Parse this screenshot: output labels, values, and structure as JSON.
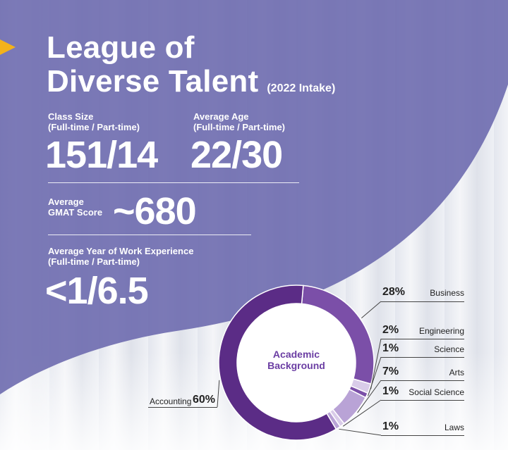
{
  "header": {
    "title_line1": "League of",
    "title_line2": "Diverse Talent",
    "intake": "(2022 Intake)"
  },
  "stats": {
    "class_size": {
      "label1": "Class Size",
      "label2": "(Full-time / Part-time)",
      "value": "151/14"
    },
    "average_age": {
      "label1": "Average Age",
      "label2": "(Full-time / Part-time)",
      "value": "22/30"
    },
    "gmat": {
      "label1": "Average",
      "label2": "GMAT Score",
      "value": "~680"
    },
    "work_experience": {
      "label1": "Average Year of Work Experience",
      "label2": "(Full-time / Part-time)",
      "value": "<1/6.5"
    }
  },
  "colors": {
    "purple_overlay": "#6a68ad",
    "accent_arrow": "#f3b21b",
    "donut_dark": "#5b2c86",
    "donut_mid": "#7b4fa8",
    "donut_light": "#b9a3d6",
    "donut_pale": "#d9cce9"
  },
  "chart_data": {
    "type": "pie",
    "title": "Academic Background",
    "slices": [
      {
        "label": "Business",
        "value": 28,
        "display": "28%"
      },
      {
        "label": "Engineering",
        "value": 2,
        "display": "2%"
      },
      {
        "label": "Science",
        "value": 1,
        "display": "1%"
      },
      {
        "label": "Arts",
        "value": 7,
        "display": "7%"
      },
      {
        "label": "Social Science",
        "value": 1,
        "display": "1%"
      },
      {
        "label": "Laws",
        "value": 1,
        "display": "1%"
      },
      {
        "label": "Accounting",
        "value": 60,
        "display": "60%"
      }
    ]
  }
}
